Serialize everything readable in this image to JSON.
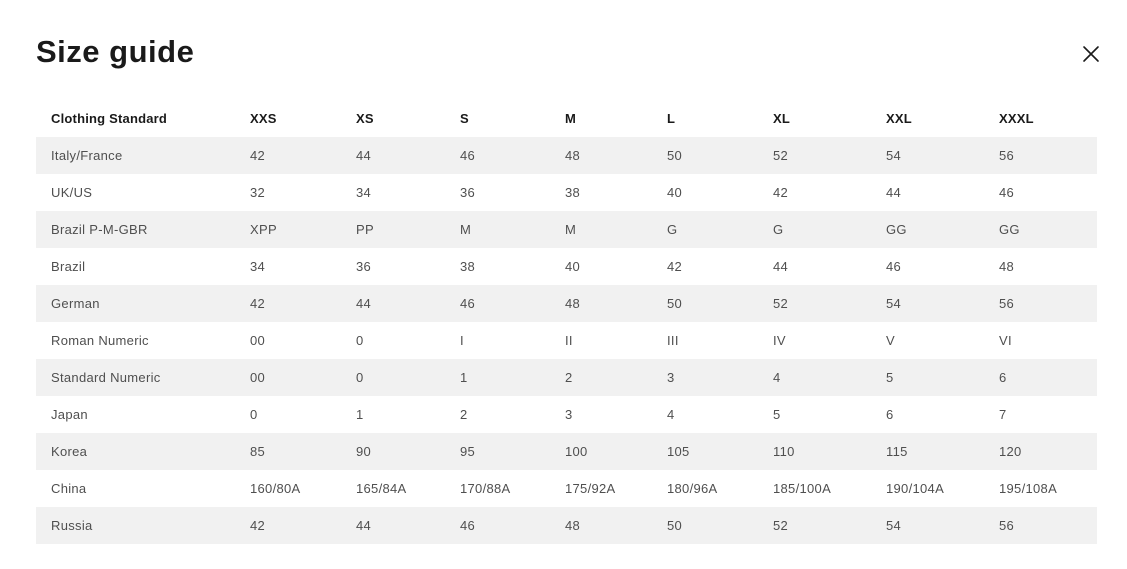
{
  "colors": {
    "row_stripe": "#f1f1f1",
    "heading_text": "#1a1a1a",
    "cell_text": "#4f4f4f",
    "background": "#ffffff"
  },
  "modal": {
    "title": "Size guide",
    "close_icon": "x-close-icon"
  },
  "table": {
    "columns": [
      "Clothing Standard",
      "XXS",
      "XS",
      "S",
      "M",
      "L",
      "XL",
      "XXL",
      "XXXL"
    ],
    "rows": [
      {
        "label": "Italy/France",
        "values": [
          "42",
          "44",
          "46",
          "48",
          "50",
          "52",
          "54",
          "56"
        ]
      },
      {
        "label": "UK/US",
        "values": [
          "32",
          "34",
          "36",
          "38",
          "40",
          "42",
          "44",
          "46"
        ]
      },
      {
        "label": "Brazil P-M-GBR",
        "values": [
          "XPP",
          "PP",
          "M",
          "M",
          "G",
          "G",
          "GG",
          "GG"
        ]
      },
      {
        "label": "Brazil",
        "values": [
          "34",
          "36",
          "38",
          "40",
          "42",
          "44",
          "46",
          "48"
        ]
      },
      {
        "label": "German",
        "values": [
          "42",
          "44",
          "46",
          "48",
          "50",
          "52",
          "54",
          "56"
        ]
      },
      {
        "label": "Roman Numeric",
        "values": [
          "00",
          "0",
          "I",
          "II",
          "III",
          "IV",
          "V",
          "VI"
        ]
      },
      {
        "label": "Standard Numeric",
        "values": [
          "00",
          "0",
          "1",
          "2",
          "3",
          "4",
          "5",
          "6"
        ]
      },
      {
        "label": "Japan",
        "values": [
          "0",
          "1",
          "2",
          "3",
          "4",
          "5",
          "6",
          "7"
        ]
      },
      {
        "label": "Korea",
        "values": [
          "85",
          "90",
          "95",
          "100",
          "105",
          "110",
          "115",
          "120"
        ]
      },
      {
        "label": "China",
        "values": [
          "160/80A",
          "165/84A",
          "170/88A",
          "175/92A",
          "180/96A",
          "185/100A",
          "190/104A",
          "195/108A"
        ]
      },
      {
        "label": "Russia",
        "values": [
          "42",
          "44",
          "46",
          "48",
          "50",
          "52",
          "54",
          "56"
        ]
      }
    ]
  }
}
